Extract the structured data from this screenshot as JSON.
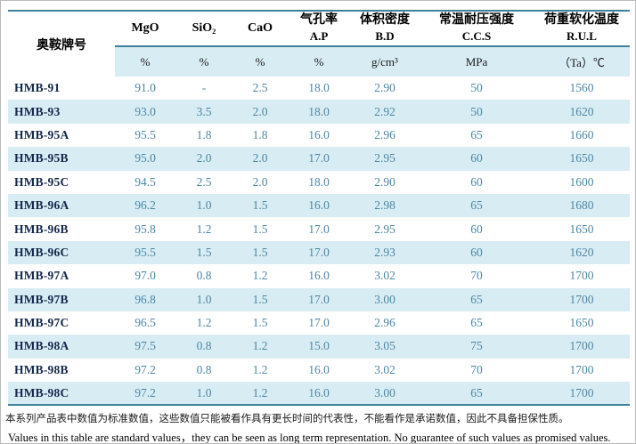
{
  "table": {
    "brand_column_label": "奥鞍牌号",
    "columns": [
      {
        "line1": "MgO",
        "line2": ""
      },
      {
        "line1": "SiO₂",
        "line2": ""
      },
      {
        "line1": "CaO",
        "line2": ""
      },
      {
        "line1": "气孔率",
        "line2": "A.P"
      },
      {
        "line1": "体积密度",
        "line2": "B.D"
      },
      {
        "line1": "常温耐压强度",
        "line2": "C.C.S"
      },
      {
        "line1": "荷重软化温度",
        "line2": "R.U.L"
      }
    ],
    "units": [
      "%",
      "%",
      "%",
      "%",
      "g/cm³",
      "MPa",
      "（Ta）℃"
    ],
    "rows": [
      {
        "brand": "HMB-91",
        "values": [
          "91.0",
          "-",
          "2.5",
          "18.0",
          "2.90",
          "50",
          "1560"
        ]
      },
      {
        "brand": "HMB-93",
        "values": [
          "93.0",
          "3.5",
          "2.0",
          "18.0",
          "2.92",
          "50",
          "1620"
        ]
      },
      {
        "brand": "HMB-95A",
        "values": [
          "95.5",
          "1.8",
          "1.8",
          "16.0",
          "2.96",
          "65",
          "1660"
        ]
      },
      {
        "brand": "HMB-95B",
        "values": [
          "95.0",
          "2.0",
          "2.0",
          "17.0",
          "2.95",
          "60",
          "1650"
        ]
      },
      {
        "brand": "HMB-95C",
        "values": [
          "94.5",
          "2.5",
          "2.0",
          "18.0",
          "2.90",
          "60",
          "1600"
        ]
      },
      {
        "brand": "HMB-96A",
        "values": [
          "96.2",
          "1.0",
          "1.5",
          "16.0",
          "2.98",
          "65",
          "1680"
        ]
      },
      {
        "brand": "HMB-96B",
        "values": [
          "95.8",
          "1.2",
          "1.5",
          "17.0",
          "2.95",
          "60",
          "1650"
        ]
      },
      {
        "brand": "HMB-96C",
        "values": [
          "95.5",
          "1.5",
          "1.5",
          "17.0",
          "2.93",
          "60",
          "1620"
        ]
      },
      {
        "brand": "HMB-97A",
        "values": [
          "97.0",
          "0.8",
          "1.2",
          "16.0",
          "3.02",
          "70",
          "1700"
        ]
      },
      {
        "brand": "HMB-97B",
        "values": [
          "96.8",
          "1.0",
          "1.5",
          "17.0",
          "3.00",
          "65",
          "1700"
        ]
      },
      {
        "brand": "HMB-97C",
        "values": [
          "96.5",
          "1.2",
          "1.5",
          "17.0",
          "2.96",
          "65",
          "1650"
        ]
      },
      {
        "brand": "HMB-98A",
        "values": [
          "97.5",
          "0.8",
          "1.2",
          "15.0",
          "3.05",
          "75",
          "1700"
        ]
      },
      {
        "brand": "HMB-98B",
        "values": [
          "97.2",
          "0.8",
          "1.2",
          "16.0",
          "3.02",
          "70",
          "1700"
        ]
      },
      {
        "brand": "HMB-98C",
        "values": [
          "97.2",
          "1.0",
          "1.2",
          "16.0",
          "3.00",
          "65",
          "1700"
        ]
      }
    ]
  },
  "footnotes": {
    "zh": "本系列产品表中数值为标准数值，这些数值只能被看作具有更长时间的代表性，不能看作是承诺数值，因此不具备担保性质。",
    "en": "Values in this table are standard values，they can be seen as long term representation. No guarantee of such values as promised values."
  },
  "colors": {
    "rule": "#3f7f99",
    "band": "#d8ecf4",
    "value_text": "#4d87a3",
    "label_text": "#14284b"
  }
}
